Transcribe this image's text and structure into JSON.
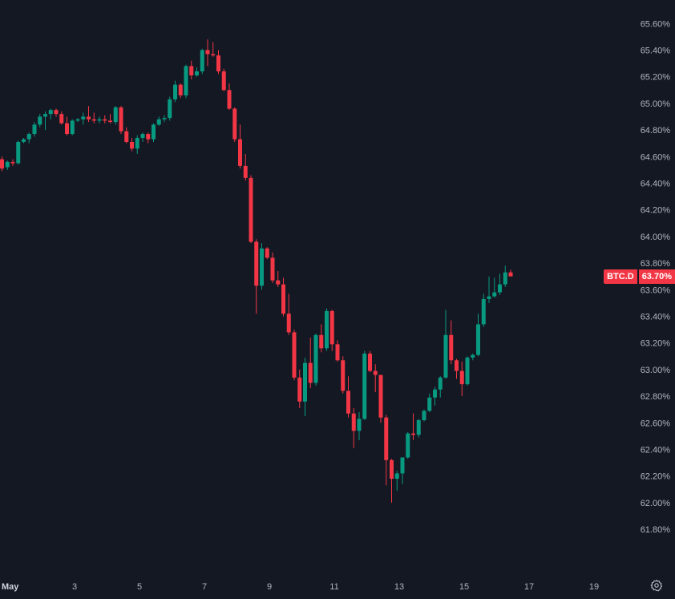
{
  "symbol": {
    "tag": "BTC.D",
    "last_price": "63.70%"
  },
  "colors": {
    "background": "#141823",
    "up": "#089981",
    "down": "#f23645",
    "axis_text": "#b2b5be"
  },
  "chart_data": {
    "type": "candlestick",
    "ylim": [
      61.62,
      65.71
    ],
    "y_ticks": [
      "65.60%",
      "65.40%",
      "65.20%",
      "65.00%",
      "64.80%",
      "64.60%",
      "64.40%",
      "64.20%",
      "64.00%",
      "63.80%",
      "63.60%",
      "63.40%",
      "63.20%",
      "63.00%",
      "62.80%",
      "62.60%",
      "62.40%",
      "62.20%",
      "62.00%",
      "61.80%"
    ],
    "y_tick_values": [
      65.6,
      65.4,
      65.2,
      65.0,
      64.8,
      64.6,
      64.4,
      64.2,
      64.0,
      63.8,
      63.6,
      63.4,
      63.2,
      63.0,
      62.8,
      62.6,
      62.4,
      62.2,
      62.0,
      61.8
    ],
    "x_ticks": [
      {
        "label": "May",
        "day": 1
      },
      {
        "label": "3",
        "day": 3
      },
      {
        "label": "5",
        "day": 5
      },
      {
        "label": "7",
        "day": 7
      },
      {
        "label": "9",
        "day": 9
      },
      {
        "label": "11",
        "day": 11
      },
      {
        "label": "13",
        "day": 13
      },
      {
        "label": "15",
        "day": 15
      },
      {
        "label": "17",
        "day": 17
      },
      {
        "label": "19",
        "day": 19
      }
    ],
    "candles": [
      [
        64.58,
        64.6,
        64.49,
        64.51
      ],
      [
        64.52,
        64.57,
        64.5,
        64.56
      ],
      [
        64.56,
        64.58,
        64.53,
        64.55
      ],
      [
        64.55,
        64.72,
        64.54,
        64.71
      ],
      [
        64.71,
        64.74,
        64.7,
        64.73
      ],
      [
        64.73,
        64.78,
        64.7,
        64.77
      ],
      [
        64.77,
        64.86,
        64.75,
        64.84
      ],
      [
        64.84,
        64.92,
        64.82,
        64.9
      ],
      [
        64.9,
        64.94,
        64.8,
        64.92
      ],
      [
        64.92,
        64.96,
        64.88,
        64.95
      ],
      [
        64.95,
        64.96,
        64.9,
        64.92
      ],
      [
        64.92,
        64.94,
        64.84,
        64.85
      ],
      [
        64.85,
        64.9,
        64.76,
        64.77
      ],
      [
        64.77,
        64.88,
        64.76,
        64.87
      ],
      [
        64.87,
        64.89,
        64.86,
        64.88
      ],
      [
        64.88,
        64.93,
        64.84,
        64.9
      ],
      [
        64.9,
        64.98,
        64.86,
        64.88
      ],
      [
        64.88,
        64.93,
        64.85,
        64.87
      ],
      [
        64.87,
        64.9,
        64.85,
        64.88
      ],
      [
        64.88,
        64.91,
        64.85,
        64.87
      ],
      [
        64.87,
        64.92,
        64.85,
        64.86
      ],
      [
        64.86,
        64.98,
        64.84,
        64.97
      ],
      [
        64.97,
        64.98,
        64.77,
        64.79
      ],
      [
        64.79,
        64.82,
        64.7,
        64.71
      ],
      [
        64.71,
        64.74,
        64.64,
        64.66
      ],
      [
        64.66,
        64.76,
        64.62,
        64.74
      ],
      [
        64.74,
        64.78,
        64.71,
        64.77
      ],
      [
        64.77,
        64.78,
        64.7,
        64.73
      ],
      [
        64.73,
        64.85,
        64.71,
        64.84
      ],
      [
        64.84,
        64.9,
        64.83,
        64.88
      ],
      [
        64.88,
        64.91,
        64.86,
        64.89
      ],
      [
        64.89,
        65.05,
        64.87,
        65.03
      ],
      [
        65.03,
        65.17,
        65.01,
        65.14
      ],
      [
        65.14,
        65.15,
        65.04,
        65.06
      ],
      [
        65.06,
        65.29,
        65.04,
        65.28
      ],
      [
        65.28,
        65.32,
        65.18,
        65.21
      ],
      [
        65.21,
        65.27,
        65.2,
        65.24
      ],
      [
        65.24,
        65.41,
        65.22,
        65.4
      ],
      [
        65.4,
        65.48,
        65.28,
        65.37
      ],
      [
        65.37,
        65.46,
        65.35,
        65.36
      ],
      [
        65.36,
        65.4,
        65.22,
        65.24
      ],
      [
        65.24,
        65.26,
        65.09,
        65.1
      ],
      [
        65.1,
        65.15,
        64.95,
        64.96
      ],
      [
        64.96,
        64.97,
        64.71,
        64.73
      ],
      [
        64.73,
        64.84,
        64.51,
        64.53
      ],
      [
        64.53,
        64.62,
        64.42,
        64.44
      ],
      [
        64.44,
        64.46,
        63.95,
        63.96
      ],
      [
        63.96,
        63.98,
        63.42,
        63.63
      ],
      [
        63.63,
        63.95,
        63.6,
        63.91
      ],
      [
        63.91,
        63.92,
        63.83,
        63.84
      ],
      [
        63.84,
        63.88,
        63.65,
        63.67
      ],
      [
        63.67,
        63.74,
        63.62,
        63.64
      ],
      [
        63.64,
        63.69,
        63.4,
        63.42
      ],
      [
        63.42,
        63.57,
        63.26,
        63.28
      ],
      [
        63.28,
        63.3,
        62.92,
        62.94
      ],
      [
        62.94,
        63.0,
        62.71,
        62.76
      ],
      [
        62.76,
        63.09,
        62.65,
        63.05
      ],
      [
        63.05,
        63.24,
        62.86,
        62.9
      ],
      [
        62.9,
        63.27,
        62.88,
        63.26
      ],
      [
        63.26,
        63.34,
        63.13,
        63.16
      ],
      [
        63.16,
        63.46,
        63.14,
        63.44
      ],
      [
        63.44,
        63.45,
        63.14,
        63.19
      ],
      [
        63.19,
        63.22,
        63.06,
        63.07
      ],
      [
        63.07,
        63.1,
        62.82,
        62.84
      ],
      [
        62.84,
        62.95,
        62.64,
        62.67
      ],
      [
        62.67,
        62.71,
        62.41,
        62.54
      ],
      [
        62.54,
        62.68,
        62.47,
        62.63
      ],
      [
        62.63,
        63.14,
        62.62,
        63.12
      ],
      [
        63.12,
        63.14,
        62.98,
        62.99
      ],
      [
        62.99,
        63.04,
        62.83,
        62.96
      ],
      [
        62.96,
        62.96,
        62.6,
        62.64
      ],
      [
        62.64,
        62.66,
        62.13,
        62.32
      ],
      [
        62.32,
        62.33,
        62.0,
        62.18
      ],
      [
        62.18,
        62.24,
        62.09,
        62.22
      ],
      [
        62.22,
        62.34,
        62.14,
        62.34
      ],
      [
        62.34,
        62.53,
        62.33,
        62.52
      ],
      [
        62.52,
        62.67,
        62.47,
        62.51
      ],
      [
        62.51,
        62.63,
        62.49,
        62.62
      ],
      [
        62.62,
        62.7,
        62.61,
        62.69
      ],
      [
        62.69,
        62.82,
        62.68,
        62.79
      ],
      [
        62.79,
        62.87,
        62.73,
        62.85
      ],
      [
        62.85,
        62.95,
        62.79,
        62.94
      ],
      [
        62.94,
        63.45,
        62.93,
        63.26
      ],
      [
        63.26,
        63.37,
        63.04,
        63.07
      ],
      [
        63.07,
        63.08,
        62.93,
        62.99
      ],
      [
        62.99,
        63.06,
        62.8,
        62.89
      ],
      [
        62.89,
        63.1,
        62.88,
        63.09
      ],
      [
        63.09,
        63.12,
        63.07,
        63.11
      ],
      [
        63.11,
        63.42,
        63.1,
        63.34
      ],
      [
        63.34,
        63.57,
        63.32,
        63.53
      ],
      [
        63.53,
        63.7,
        63.5,
        63.55
      ],
      [
        63.55,
        63.69,
        63.54,
        63.58
      ],
      [
        63.58,
        63.72,
        63.56,
        63.64
      ],
      [
        63.64,
        63.78,
        63.62,
        63.73
      ],
      [
        63.73,
        63.75,
        63.7,
        63.7
      ]
    ],
    "candle_index_at_day_1": 0,
    "candles_per_day": 6,
    "last_price_value": 63.7
  }
}
